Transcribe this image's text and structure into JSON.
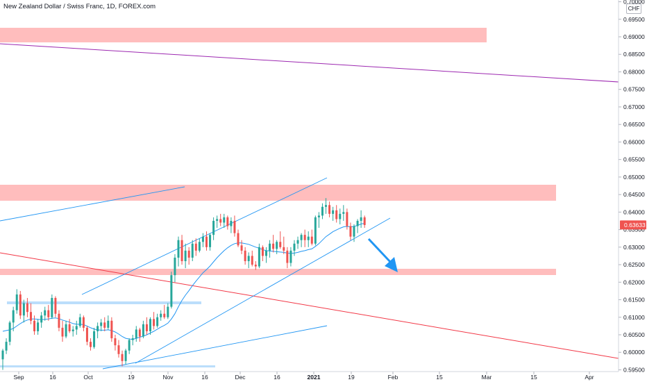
{
  "header": {
    "title": "New Zealand Dollar / Swiss Franc, 1D, FOREX.com",
    "currency": "CHF"
  },
  "colors": {
    "up": "#26a69a",
    "down": "#ef5350",
    "zone": "#ffb7b7",
    "trendline": "#2196f3",
    "moving_average": "#2196f3",
    "purple_line": "#9c27b0",
    "red_line": "#f23645",
    "arrow": "#2196f3",
    "price_tag": "#ef5350"
  },
  "chart_data": {
    "type": "candlestick",
    "symbol": "NZD/CHF",
    "timeframe": "1D",
    "y_axis": {
      "side": "right",
      "range": [
        0.5945,
        0.7005
      ],
      "ticks": [
        "0.70000",
        "0.69500",
        "0.69000",
        "0.68500",
        "0.68000",
        "0.67500",
        "0.67000",
        "0.66500",
        "0.66000",
        "0.65500",
        "0.65000",
        "0.64500",
        "0.64000",
        "0.63500",
        "0.63000",
        "0.62500",
        "0.62000",
        "0.61500",
        "0.61000",
        "0.60500",
        "0.60000",
        "0.59500"
      ]
    },
    "x_axis": {
      "labels": [
        {
          "text": "Sep",
          "bold": false
        },
        {
          "text": "16",
          "bold": false
        },
        {
          "text": "Oct",
          "bold": false
        },
        {
          "text": "19",
          "bold": false
        },
        {
          "text": "Nov",
          "bold": false
        },
        {
          "text": "16",
          "bold": false
        },
        {
          "text": "Dec",
          "bold": false
        },
        {
          "text": "16",
          "bold": false
        },
        {
          "text": "2021",
          "bold": true
        },
        {
          "text": "19",
          "bold": false
        },
        {
          "text": "Feb",
          "bold": false
        },
        {
          "text": "15",
          "bold": false
        },
        {
          "text": "Mar",
          "bold": false
        },
        {
          "text": "15",
          "bold": false
        },
        {
          "text": "Apr",
          "bold": false
        }
      ]
    },
    "last_price": "0.63633",
    "grid": false,
    "series": [
      {
        "kind": "ohlc",
        "candles": [
          [
            0.598,
            0.601,
            0.595,
            0.6005
          ],
          [
            0.6005,
            0.604,
            0.5995,
            0.603
          ],
          [
            0.603,
            0.609,
            0.602,
            0.6085
          ],
          [
            0.6085,
            0.613,
            0.606,
            0.612
          ],
          [
            0.612,
            0.618,
            0.611,
            0.6165
          ],
          [
            0.6165,
            0.6175,
            0.6095,
            0.6105
          ],
          [
            0.6105,
            0.615,
            0.6085,
            0.614
          ],
          [
            0.614,
            0.6155,
            0.61,
            0.6115
          ],
          [
            0.6115,
            0.614,
            0.608,
            0.609
          ],
          [
            0.609,
            0.6105,
            0.605,
            0.606
          ],
          [
            0.606,
            0.6095,
            0.605,
            0.6085
          ],
          [
            0.6085,
            0.6115,
            0.607,
            0.6105
          ],
          [
            0.6105,
            0.613,
            0.609,
            0.612
          ],
          [
            0.612,
            0.6135,
            0.609,
            0.61
          ],
          [
            0.61,
            0.6165,
            0.6095,
            0.6155
          ],
          [
            0.6155,
            0.616,
            0.61,
            0.611
          ],
          [
            0.611,
            0.612,
            0.606,
            0.607
          ],
          [
            0.607,
            0.609,
            0.603,
            0.6045
          ],
          [
            0.6045,
            0.609,
            0.604,
            0.608
          ],
          [
            0.608,
            0.6095,
            0.6055,
            0.606
          ],
          [
            0.606,
            0.6075,
            0.6045,
            0.6065
          ],
          [
            0.6065,
            0.609,
            0.605,
            0.6075
          ],
          [
            0.6075,
            0.611,
            0.607,
            0.61
          ],
          [
            0.61,
            0.6105,
            0.606,
            0.607
          ],
          [
            0.607,
            0.6075,
            0.602,
            0.603
          ],
          [
            0.603,
            0.604,
            0.6005,
            0.6015
          ],
          [
            0.6015,
            0.607,
            0.601,
            0.606
          ],
          [
            0.606,
            0.6085,
            0.604,
            0.6075
          ],
          [
            0.6075,
            0.6095,
            0.606,
            0.6085
          ],
          [
            0.6085,
            0.61,
            0.606,
            0.607
          ],
          [
            0.607,
            0.6105,
            0.6065,
            0.609
          ],
          [
            0.609,
            0.61,
            0.603,
            0.604
          ],
          [
            0.604,
            0.605,
            0.6005,
            0.602
          ],
          [
            0.602,
            0.6035,
            0.5985,
            0.5995
          ],
          [
            0.5995,
            0.6005,
            0.596,
            0.5975
          ],
          [
            0.5975,
            0.601,
            0.5965,
            0.6005
          ],
          [
            0.6005,
            0.604,
            0.5995,
            0.6035
          ],
          [
            0.6035,
            0.605,
            0.602,
            0.604
          ],
          [
            0.604,
            0.6075,
            0.603,
            0.6065
          ],
          [
            0.6065,
            0.607,
            0.603,
            0.6045
          ],
          [
            0.6045,
            0.609,
            0.604,
            0.608
          ],
          [
            0.608,
            0.61,
            0.605,
            0.606
          ],
          [
            0.606,
            0.61,
            0.605,
            0.6095
          ],
          [
            0.6095,
            0.6115,
            0.6065,
            0.6075
          ],
          [
            0.6075,
            0.611,
            0.607,
            0.61
          ],
          [
            0.61,
            0.612,
            0.609,
            0.611
          ],
          [
            0.611,
            0.6135,
            0.6095,
            0.61
          ],
          [
            0.61,
            0.614,
            0.6095,
            0.613
          ],
          [
            0.613,
            0.623,
            0.6125,
            0.622
          ],
          [
            0.622,
            0.628,
            0.62,
            0.627
          ],
          [
            0.627,
            0.633,
            0.6245,
            0.632
          ],
          [
            0.632,
            0.6335,
            0.625,
            0.626
          ],
          [
            0.626,
            0.631,
            0.624,
            0.629
          ],
          [
            0.629,
            0.63,
            0.625,
            0.627
          ],
          [
            0.627,
            0.632,
            0.626,
            0.631
          ],
          [
            0.631,
            0.6325,
            0.6275,
            0.629
          ],
          [
            0.629,
            0.6325,
            0.6285,
            0.6315
          ],
          [
            0.6315,
            0.634,
            0.63,
            0.633
          ],
          [
            0.633,
            0.6345,
            0.629,
            0.63
          ],
          [
            0.63,
            0.634,
            0.629,
            0.6335
          ],
          [
            0.6335,
            0.6385,
            0.632,
            0.6375
          ],
          [
            0.6375,
            0.639,
            0.6355,
            0.638
          ],
          [
            0.638,
            0.6395,
            0.636,
            0.637
          ],
          [
            0.637,
            0.6395,
            0.6355,
            0.6385
          ],
          [
            0.6385,
            0.639,
            0.635,
            0.636
          ],
          [
            0.636,
            0.6385,
            0.634,
            0.6375
          ],
          [
            0.6375,
            0.639,
            0.633,
            0.634
          ],
          [
            0.634,
            0.635,
            0.63,
            0.6305
          ],
          [
            0.6305,
            0.632,
            0.628,
            0.629
          ],
          [
            0.629,
            0.63,
            0.625,
            0.626
          ],
          [
            0.626,
            0.6285,
            0.624,
            0.6275
          ],
          [
            0.6275,
            0.629,
            0.6245,
            0.625
          ],
          [
            0.625,
            0.626,
            0.6235,
            0.6245
          ],
          [
            0.6245,
            0.631,
            0.624,
            0.63
          ],
          [
            0.63,
            0.6305,
            0.626,
            0.6275
          ],
          [
            0.6275,
            0.63,
            0.6255,
            0.629
          ],
          [
            0.629,
            0.632,
            0.627,
            0.631
          ],
          [
            0.631,
            0.6335,
            0.6285,
            0.6295
          ],
          [
            0.6295,
            0.632,
            0.628,
            0.6315
          ],
          [
            0.6315,
            0.6345,
            0.6295,
            0.63
          ],
          [
            0.63,
            0.633,
            0.628,
            0.629
          ],
          [
            0.629,
            0.63,
            0.624,
            0.6255
          ],
          [
            0.6255,
            0.63,
            0.6245,
            0.629
          ],
          [
            0.629,
            0.632,
            0.6275,
            0.631
          ],
          [
            0.631,
            0.633,
            0.6295,
            0.632
          ],
          [
            0.632,
            0.634,
            0.63,
            0.6335
          ],
          [
            0.6335,
            0.635,
            0.63,
            0.632
          ],
          [
            0.632,
            0.6345,
            0.63,
            0.633
          ],
          [
            0.633,
            0.635,
            0.6305,
            0.631
          ],
          [
            0.631,
            0.639,
            0.6305,
            0.6385
          ],
          [
            0.6385,
            0.64,
            0.6355,
            0.639
          ],
          [
            0.639,
            0.6425,
            0.638,
            0.6415
          ],
          [
            0.6415,
            0.644,
            0.6395,
            0.642
          ],
          [
            0.642,
            0.643,
            0.6385,
            0.6395
          ],
          [
            0.6395,
            0.6415,
            0.6375,
            0.6405
          ],
          [
            0.6405,
            0.642,
            0.637,
            0.638
          ],
          [
            0.638,
            0.641,
            0.6365,
            0.6395
          ],
          [
            0.6395,
            0.642,
            0.6375,
            0.64
          ],
          [
            0.64,
            0.641,
            0.635,
            0.636
          ],
          [
            0.636,
            0.637,
            0.632,
            0.633
          ],
          [
            0.633,
            0.6365,
            0.6315,
            0.636
          ],
          [
            0.636,
            0.638,
            0.634,
            0.6375
          ],
          [
            0.6375,
            0.6405,
            0.6355,
            0.6385
          ],
          [
            0.6385,
            0.639,
            0.6355,
            0.6363
          ]
        ]
      },
      {
        "kind": "moving_average",
        "values": [
          0.606,
          0.6062,
          0.6064,
          0.6068,
          0.6075,
          0.6082,
          0.6088,
          0.6092,
          0.6095,
          0.6095,
          0.6094,
          0.6093,
          0.6094,
          0.6095,
          0.6097,
          0.6098,
          0.6096,
          0.6092,
          0.6089,
          0.6086,
          0.6082,
          0.608,
          0.608,
          0.6079,
          0.6075,
          0.607,
          0.6066,
          0.6064,
          0.6063,
          0.6063,
          0.6064,
          0.6062,
          0.6058,
          0.6052,
          0.6045,
          0.604,
          0.6038,
          0.6037,
          0.604,
          0.6043,
          0.6046,
          0.605,
          0.6055,
          0.606,
          0.6066,
          0.6072,
          0.6077,
          0.6083,
          0.6095,
          0.611,
          0.613,
          0.6148,
          0.6163,
          0.6176,
          0.619,
          0.6203,
          0.6215,
          0.6227,
          0.6236,
          0.6246,
          0.6258,
          0.627,
          0.628,
          0.629,
          0.6298,
          0.6305,
          0.631,
          0.6312,
          0.6312,
          0.631,
          0.6308,
          0.6304,
          0.63,
          0.6297,
          0.6293,
          0.629,
          0.6289,
          0.6288,
          0.6287,
          0.6286,
          0.6285,
          0.6283,
          0.6282,
          0.6283,
          0.6285,
          0.6288,
          0.629,
          0.6293,
          0.6295,
          0.6302,
          0.631,
          0.632,
          0.633,
          0.6337,
          0.6344,
          0.6349,
          0.6354,
          0.6358,
          0.6359,
          0.6358,
          0.6359,
          0.6362,
          0.6366,
          0.6368
        ]
      }
    ]
  }
}
